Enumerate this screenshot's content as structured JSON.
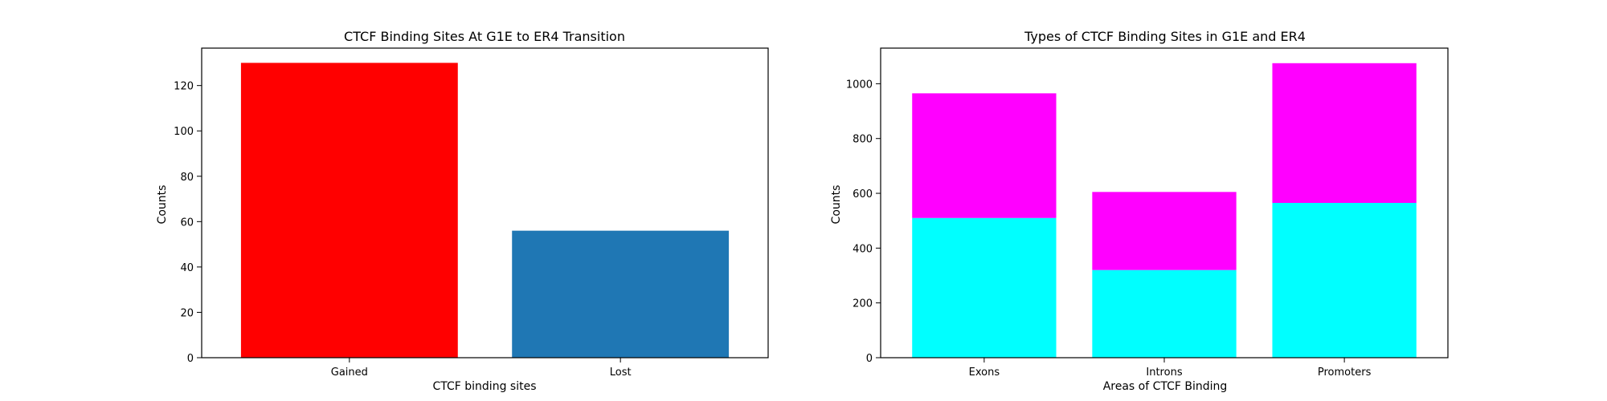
{
  "chart_data": [
    {
      "type": "bar",
      "title": "CTCF Binding Sites At G1E to ER4 Transition",
      "xlabel": "CTCF binding sites",
      "ylabel": "Counts",
      "categories": [
        "Gained",
        "Lost"
      ],
      "values": [
        130,
        56
      ],
      "bar_colors": [
        "#ff0000",
        "#1f77b4"
      ],
      "ylim": [
        0,
        136.5
      ],
      "yticks": [
        0,
        20,
        40,
        60,
        80,
        100,
        120
      ],
      "ytick_labels": [
        "0",
        "20",
        "40",
        "60",
        "80",
        "100",
        "120"
      ],
      "grid": false,
      "legend": "none"
    },
    {
      "type": "bar",
      "stacked": true,
      "title": "Types of CTCF Binding Sites in G1E and ER4",
      "xlabel": "Areas of CTCF Binding",
      "ylabel": "Counts",
      "categories": [
        "Exons",
        "Introns",
        "Promoters"
      ],
      "series": [
        {
          "values": [
            510,
            320,
            565
          ],
          "color": "#00ffff"
        },
        {
          "values": [
            455,
            285,
            510
          ],
          "color": "#ff00ff"
        }
      ],
      "ylim": [
        0,
        1130
      ],
      "yticks": [
        0,
        200,
        400,
        600,
        800,
        1000
      ],
      "ytick_labels": [
        "0",
        "200",
        "400",
        "600",
        "800",
        "1000"
      ],
      "grid": false,
      "legend": "none"
    }
  ]
}
